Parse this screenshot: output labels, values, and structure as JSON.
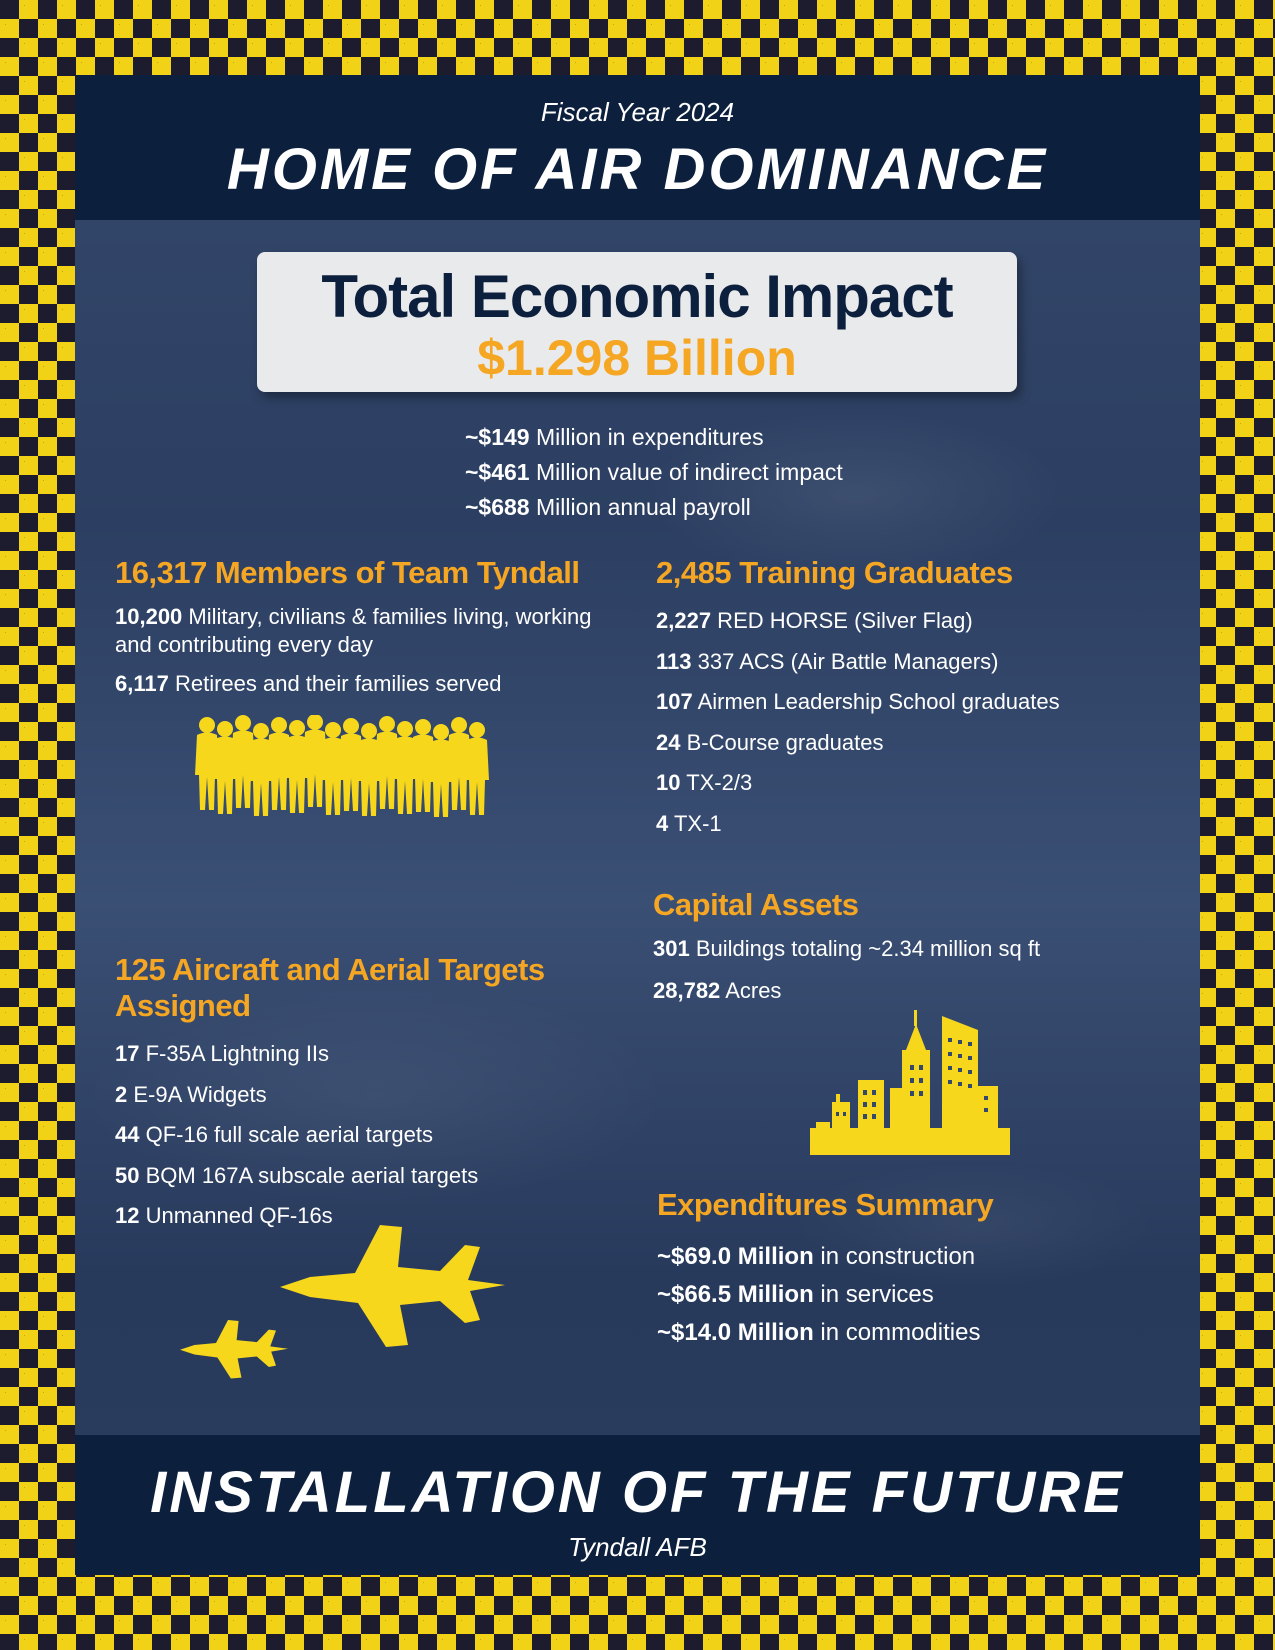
{
  "header": {
    "fiscal_year": "Fiscal Year 2024",
    "title": "HOME OF AIR DOMINANCE"
  },
  "impact": {
    "title": "Total Economic Impact",
    "value": "$1.298 Billion",
    "items": [
      {
        "amount": "~$149",
        "text": " Million in expenditures"
      },
      {
        "amount": "~$461",
        "text": " Million value of indirect impact"
      },
      {
        "amount": "~$688",
        "text": " Million annual payroll"
      }
    ]
  },
  "members": {
    "heading": "16,317 Members of Team Tyndall",
    "items": [
      {
        "num": "10,200",
        "text": " Military, civilians & families living, working and contributing every day"
      },
      {
        "num": "6,117",
        "text": " Retirees and their families served"
      }
    ]
  },
  "training": {
    "heading": "2,485 Training Graduates",
    "items": [
      {
        "num": "2,227",
        "text": " RED HORSE (Silver Flag)"
      },
      {
        "num": "113",
        "text": " 337 ACS (Air Battle Managers)"
      },
      {
        "num": "107",
        "text": " Airmen Leadership School graduates"
      },
      {
        "num": "24",
        "text": " B-Course graduates"
      },
      {
        "num": "10",
        "text": " TX-2/3"
      },
      {
        "num": "4",
        "text": " TX-1"
      }
    ]
  },
  "capital": {
    "heading": "Capital Assets",
    "items": [
      {
        "num": "301",
        "text": " Buildings totaling ~2.34 million sq ft"
      },
      {
        "num": "28,782",
        "text": " Acres"
      }
    ]
  },
  "aircraft": {
    "heading": "125 Aircraft and Aerial Targets Assigned",
    "items": [
      {
        "num": "17",
        "text": " F-35A Lightning IIs"
      },
      {
        "num": "2",
        "text": " E-9A Widgets"
      },
      {
        "num": "44",
        "text": " QF-16 full scale aerial targets"
      },
      {
        "num": "50",
        "text": " BQM 167A subscale aerial targets"
      },
      {
        "num": "12",
        "text": " Unmanned QF-16s"
      }
    ]
  },
  "expenditures": {
    "heading": "Expenditures Summary",
    "items": [
      {
        "num": "~$69.0 Million",
        "text": " in construction"
      },
      {
        "num": "~$66.5 Million",
        "text": " in services"
      },
      {
        "num": "~$14.0 Million",
        "text": " in commodities"
      }
    ]
  },
  "footer": {
    "title": "INSTALLATION OF THE FUTURE",
    "subtitle": "Tyndall AFB"
  },
  "colors": {
    "navy": "#0c1f3d",
    "accent_orange": "#f5a623",
    "checker_yellow": "#f2d217",
    "silhouette_yellow": "#f7d71c"
  },
  "icons": [
    "crowd-silhouette-icon",
    "city-skyline-icon",
    "fighter-jet-icon"
  ]
}
